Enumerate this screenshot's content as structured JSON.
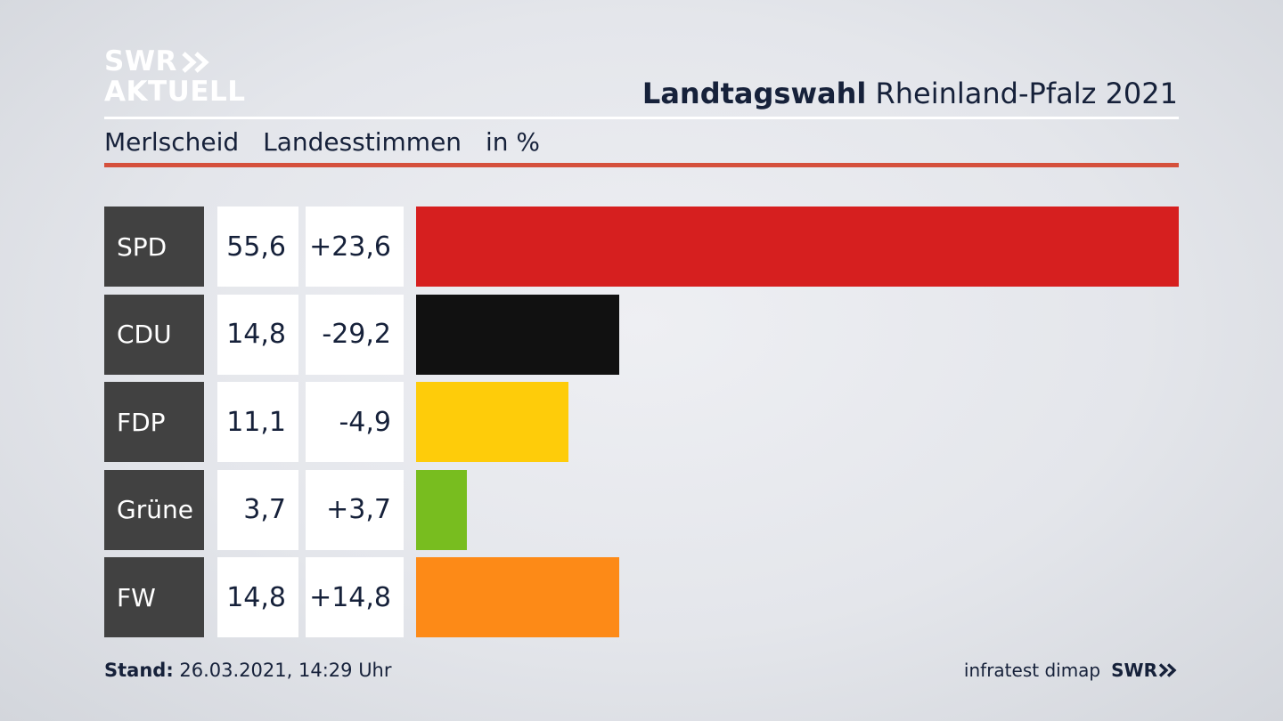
{
  "brand": {
    "logo_line1": "SWR",
    "logo_line2": "AKTUELL",
    "logo_icon": "double-chevron-right-icon",
    "text_color": "#ffffff"
  },
  "header": {
    "title_bold": "Landtagswahl",
    "title_rest": "Rheinland-Pfalz 2021"
  },
  "subheader": {
    "location": "Merlscheid",
    "vote_type": "Landesstimmen",
    "unit": "in %"
  },
  "chart_data": {
    "type": "bar",
    "orientation": "horizontal",
    "categories": [
      "SPD",
      "CDU",
      "FDP",
      "Grüne",
      "FW"
    ],
    "series": [
      {
        "values": [
          55.6,
          14.8,
          11.1,
          3.7,
          14.8
        ]
      }
    ],
    "value_labels": [
      "55,6",
      "14,8",
      "11,1",
      "3,7",
      "14,8"
    ],
    "change_labels": [
      "+23,6",
      "-29,2",
      "-4,9",
      "+3,7",
      "+14,8"
    ],
    "changes": [
      23.6,
      -29.2,
      -4.9,
      3.7,
      14.8
    ],
    "colors": [
      "#d61f1f",
      "#111111",
      "#fecc0a",
      "#78bd1f",
      "#fd8a17"
    ],
    "xlim": [
      0,
      55.6
    ],
    "grid": false
  },
  "footer": {
    "stand_label": "Stand:",
    "stand_value": "26.03.2021, 14:29 Uhr",
    "source": "infratest dimap",
    "source_brand": "SWR"
  },
  "accent_colors": {
    "rule_red": "#d5503c",
    "party_box": "#414141",
    "text_dark": "#16213a"
  }
}
